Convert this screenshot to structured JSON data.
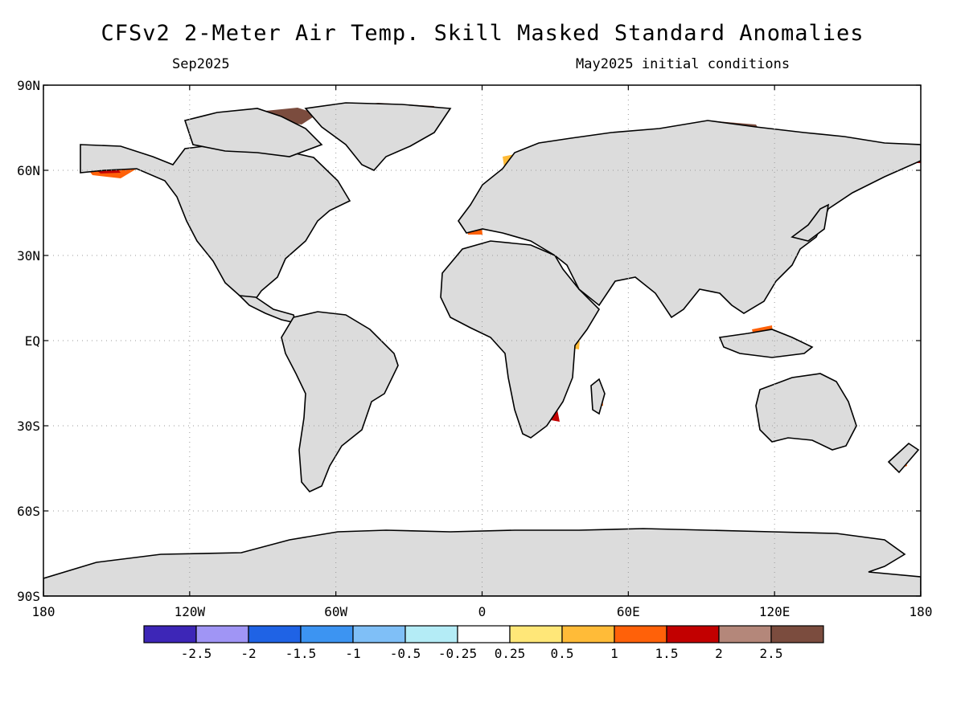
{
  "map": {
    "title": "CFSv2 2-Meter Air Temp. Skill Masked Standard Anomalies",
    "subtitle_left": "Sep2025",
    "subtitle_right": "May2025 initial conditions",
    "lat_labels": [
      "90N",
      "60N",
      "30N",
      "EQ",
      "30S",
      "60S",
      "90S"
    ],
    "lon_labels": [
      "180",
      "120W",
      "60W",
      "0",
      "60E",
      "120E",
      "180"
    ],
    "land_color": "#dcdcdc",
    "legend": {
      "colors": [
        "#3d26b7",
        "#a095f5",
        "#1f63e5",
        "#3c94f2",
        "#7fbff7",
        "#b4ecf6",
        "#ffffff",
        "#ffe778",
        "#ffbb38",
        "#ff6109",
        "#c20000",
        "#b4877a",
        "#7b4c3e"
      ],
      "labels": [
        "-2.5",
        "-2",
        "-1.5",
        "-1",
        "-0.5",
        "-0.25",
        "0.25",
        "0.5",
        "1",
        "1.5",
        "2",
        "2.5"
      ]
    }
  }
}
